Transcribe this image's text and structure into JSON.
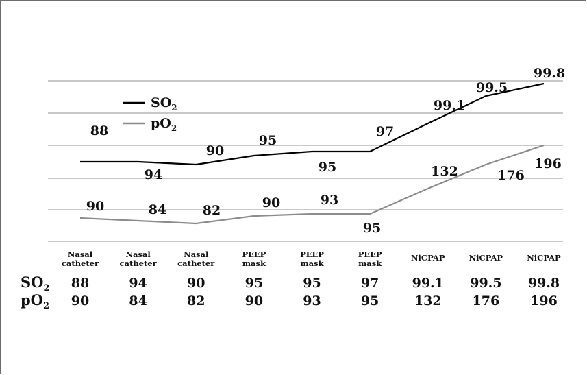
{
  "chart_data": {
    "type": "line",
    "categories": [
      [
        "Nasal",
        "catheter"
      ],
      [
        "Nasal",
        "catheter"
      ],
      [
        "Nasal",
        "catheter"
      ],
      [
        "PEEP",
        "mask"
      ],
      [
        "PEEP",
        "mask"
      ],
      [
        "PEEP",
        "mask"
      ],
      [
        "NiCPAP"
      ],
      [
        "NiCPAP"
      ],
      [
        "NiCPAP"
      ]
    ],
    "series": [
      {
        "key": "so2",
        "name": "SO",
        "subscript": "2",
        "color": "#000000",
        "values": [
          88,
          94,
          90,
          95,
          95,
          97,
          99.1,
          99.5,
          99.8
        ],
        "labels": [
          "88",
          "94",
          "90",
          "95",
          "95",
          "97",
          "99.1",
          "99.5",
          "99.8"
        ]
      },
      {
        "key": "po2",
        "name": "pO",
        "subscript": "2",
        "color": "#8c8c8c",
        "values": [
          90,
          84,
          82,
          90,
          93,
          95,
          132,
          176,
          196
        ],
        "labels": [
          "90",
          "84",
          "82",
          "90",
          "93",
          "95",
          "132",
          "176",
          "196"
        ]
      }
    ],
    "legend": "upper-left inside plot",
    "grid": true
  }
}
